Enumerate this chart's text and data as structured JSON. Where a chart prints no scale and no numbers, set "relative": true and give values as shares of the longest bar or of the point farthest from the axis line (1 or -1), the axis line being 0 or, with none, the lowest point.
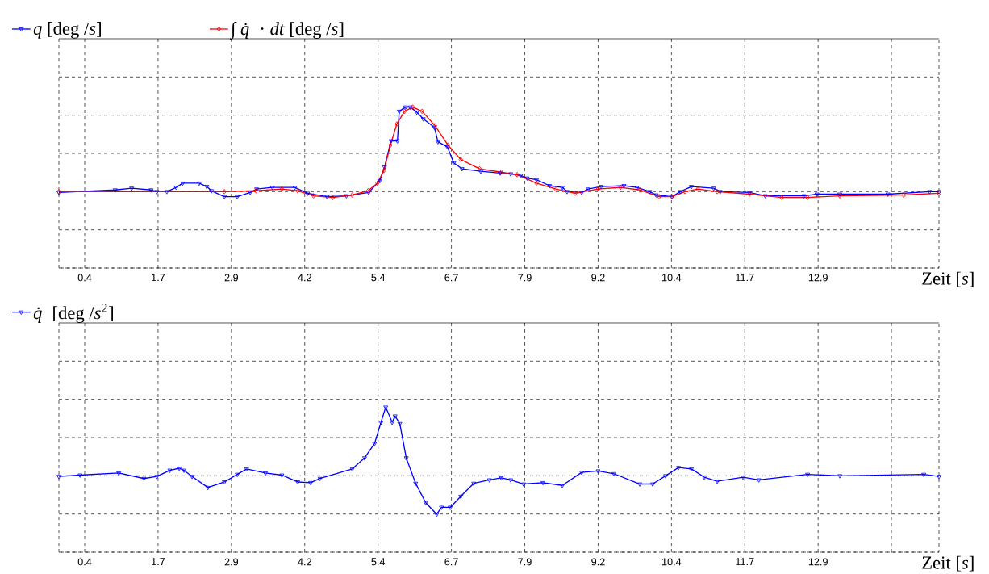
{
  "chart_data": [
    {
      "type": "line",
      "xlabel": "Zeit [*s*]",
      "relative": true,
      "grid": true,
      "legend": "top left",
      "line_style": "solid",
      "xlim": [
        -0.04,
        14.96
      ],
      "xticks": [
        {
          "value": 0.4,
          "label": "0.4"
        },
        {
          "value": 1.65,
          "label": "1.7"
        },
        {
          "value": 2.9,
          "label": "2.9"
        },
        {
          "value": 4.15,
          "label": "4.2"
        },
        {
          "value": 5.4,
          "label": "5.4"
        },
        {
          "value": 6.65,
          "label": "6.7"
        },
        {
          "value": 7.9,
          "label": "7.9"
        },
        {
          "value": 9.15,
          "label": "9.2"
        },
        {
          "value": 10.4,
          "label": "10.4"
        },
        {
          "value": 11.65,
          "label": "11.7"
        },
        {
          "value": 12.9,
          "label": "12.9"
        },
        {
          "value": 14.15,
          "label": null
        }
      ],
      "series": [
        {
          "name": "*q* [deg /*s*]",
          "color": "#0000ff",
          "marker": "triangle",
          "x": [
            -0.04,
            0.92,
            1.2,
            1.53,
            1.63,
            1.8,
            1.96,
            2.07,
            2.35,
            2.48,
            2.56,
            2.78,
            3.0,
            3.22,
            3.33,
            3.6,
            3.98,
            4.2,
            4.53,
            4.86,
            5.24,
            5.43,
            5.51,
            5.62,
            5.73,
            5.76,
            5.87,
            5.95,
            6.06,
            6.17,
            6.36,
            6.42,
            6.58,
            6.69,
            6.83,
            7.15,
            7.48,
            7.66,
            7.83,
            7.94,
            8.1,
            8.32,
            8.54,
            8.62,
            8.87,
            8.98,
            9.2,
            9.59,
            9.81,
            10.03,
            10.14,
            10.41,
            10.55,
            10.74,
            11.12,
            11.23,
            11.73,
            12.0,
            12.66,
            12.88,
            13.27,
            14.09,
            14.8,
            14.96
          ],
          "values": [
            -0.01,
            0.02,
            0.04,
            0.02,
            0,
            0,
            0.05,
            0.1,
            0.1,
            0.06,
            0.01,
            -0.06,
            -0.06,
            -0.01,
            0.03,
            0.05,
            0.05,
            -0.02,
            -0.06,
            -0.05,
            -0.01,
            0.13,
            0.29,
            0.6,
            0.6,
            0.95,
            1.0,
            1.0,
            0.94,
            0.86,
            0.76,
            0.59,
            0.53,
            0.34,
            0.27,
            0.24,
            0.22,
            0.21,
            0.19,
            0.16,
            0.14,
            0.07,
            0.05,
            0,
            -0.01,
            0.03,
            0.06,
            0.07,
            0.05,
            0,
            -0.04,
            -0.06,
            0,
            0.06,
            0.04,
            0,
            -0.01,
            -0.05,
            -0.05,
            -0.03,
            -0.03,
            -0.03,
            0,
            0
          ]
        },
        {
          "name": "∫ *q̇* · *dt* [deg /*s*]",
          "color": "#ff0000",
          "marker": "diamond",
          "x": [
            -0.04,
            2.78,
            3.32,
            3.76,
            4.03,
            4.3,
            4.63,
            4.96,
            5.23,
            5.39,
            5.5,
            5.61,
            5.72,
            5.85,
            5.99,
            6.15,
            6.37,
            6.59,
            6.81,
            7.13,
            7.5,
            7.77,
            8.1,
            8.43,
            8.76,
            9.15,
            9.53,
            9.86,
            10.19,
            10.41,
            10.63,
            10.85,
            11.18,
            11.73,
            12.28,
            12.72,
            13.27,
            14.36,
            14.96
          ],
          "values": [
            0,
            0,
            0.01,
            0.03,
            0.01,
            -0.05,
            -0.07,
            -0.04,
            0.01,
            0.1,
            0.25,
            0.55,
            0.8,
            0.95,
            1.0,
            0.95,
            0.78,
            0.55,
            0.38,
            0.27,
            0.23,
            0.2,
            0.1,
            0.03,
            -0.02,
            0.03,
            0.05,
            0.02,
            -0.06,
            -0.06,
            0,
            0.03,
            0,
            -0.03,
            -0.07,
            -0.07,
            -0.05,
            -0.04,
            -0.02
          ]
        }
      ]
    },
    {
      "type": "line",
      "xlabel": "Zeit [*s*]",
      "relative": true,
      "grid": true,
      "legend": "top left",
      "line_style": "solid",
      "xlim": [
        -0.04,
        14.96
      ],
      "xticks": [
        {
          "value": 0.4,
          "label": "0.4"
        },
        {
          "value": 1.65,
          "label": "1.7"
        },
        {
          "value": 2.9,
          "label": "2.9"
        },
        {
          "value": 4.15,
          "label": "4.2"
        },
        {
          "value": 5.4,
          "label": "5.4"
        },
        {
          "value": 6.65,
          "label": "6.7"
        },
        {
          "value": 7.9,
          "label": "7.9"
        },
        {
          "value": 9.15,
          "label": "9.2"
        },
        {
          "value": 10.4,
          "label": "10.4"
        },
        {
          "value": 11.65,
          "label": "11.7"
        },
        {
          "value": 12.9,
          "label": "12.9"
        },
        {
          "value": 14.15,
          "label": null
        }
      ],
      "series": [
        {
          "name": "*q̇* [deg /*s*$^{2}$]",
          "color": "#0000ff",
          "marker": "triangle",
          "x": [
            -0.04,
            0.32,
            0.98,
            1.41,
            1.63,
            1.85,
            2.01,
            2.09,
            2.23,
            2.5,
            2.78,
            3.0,
            3.16,
            3.48,
            3.76,
            4.03,
            4.25,
            4.41,
            4.96,
            5.17,
            5.34,
            5.45,
            5.53,
            5.64,
            5.69,
            5.77,
            5.88,
            6.04,
            6.21,
            6.4,
            6.48,
            6.63,
            6.81,
            7.03,
            7.3,
            7.5,
            7.66,
            7.88,
            8.21,
            8.54,
            8.87,
            9.15,
            9.42,
            9.86,
            10.08,
            10.3,
            10.52,
            10.74,
            10.96,
            11.18,
            11.62,
            11.89,
            12.72,
            13.27,
            14.7,
            14.96
          ],
          "values": [
            -0.01,
            0.01,
            0.04,
            -0.04,
            -0.01,
            0.08,
            0.11,
            0.08,
            -0.01,
            -0.17,
            -0.09,
            0.02,
            0.1,
            0.04,
            0.01,
            -0.09,
            -0.1,
            -0.04,
            0.1,
            0.26,
            0.47,
            0.78,
            1.0,
            0.78,
            0.87,
            0.76,
            0.26,
            -0.11,
            -0.39,
            -0.56,
            -0.46,
            -0.46,
            -0.3,
            -0.11,
            -0.06,
            -0.03,
            -0.06,
            -0.12,
            -0.1,
            -0.14,
            0.05,
            0.07,
            0.03,
            -0.12,
            -0.12,
            0,
            0.12,
            0.1,
            -0.02,
            -0.08,
            -0.02,
            -0.06,
            0.02,
            0,
            0.02,
            -0.01
          ]
        }
      ]
    }
  ]
}
